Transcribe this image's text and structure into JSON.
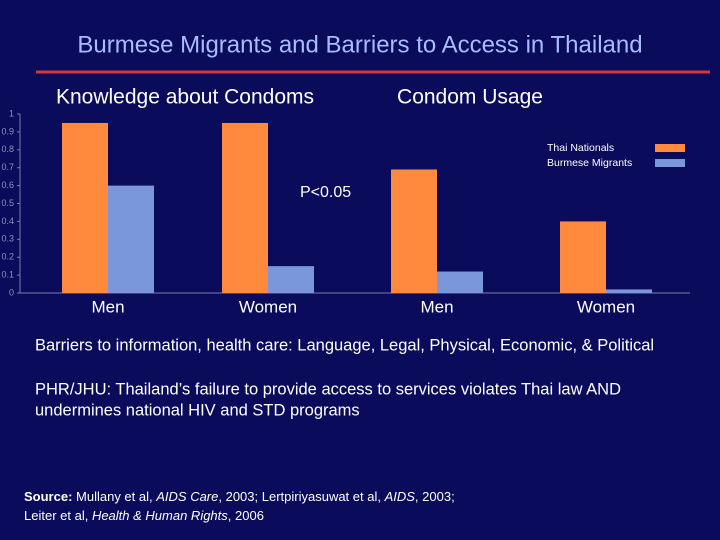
{
  "chart_data": {
    "type": "bar",
    "title": "Burmese Migrants and Barriers to Access in Thailand",
    "group_labels": [
      "Knowledge about Condoms",
      "Condom Usage"
    ],
    "annotation": "P<0.05",
    "categories": [
      "Men",
      "Women",
      "Men",
      "Women"
    ],
    "series": [
      {
        "name": "Thai Nationals",
        "color": "#ff8a3d",
        "values": [
          0.95,
          0.95,
          0.69,
          0.4
        ]
      },
      {
        "name": "Burmese Migrants",
        "color": "#7b97dc",
        "values": [
          0.6,
          0.15,
          0.12,
          0.02
        ]
      }
    ],
    "ylim": [
      0,
      1
    ],
    "yticks": [
      0,
      0.1,
      0.2,
      0.3,
      0.4,
      0.5,
      0.6,
      0.7,
      0.8,
      0.9,
      1
    ],
    "grid": false,
    "legend": "upper right"
  },
  "notes": {
    "barriers": "Barriers to information, health care:   Language, Legal, Physical, Economic, & Political",
    "phr": [
      "PHR/JHU:  Thailand’s failure to provide access to services violates Thai law AND",
      "undermines national HIV and STD programs"
    ],
    "source": [
      "Source:",
      " Mullany et al, ",
      "AIDS Care",
      ", 2003; Lertpiriyasuwat et al, ",
      "AIDS",
      ", 2003;",
      "Leiter et al, ",
      "Health & Human Rights",
      ", 2006"
    ]
  }
}
